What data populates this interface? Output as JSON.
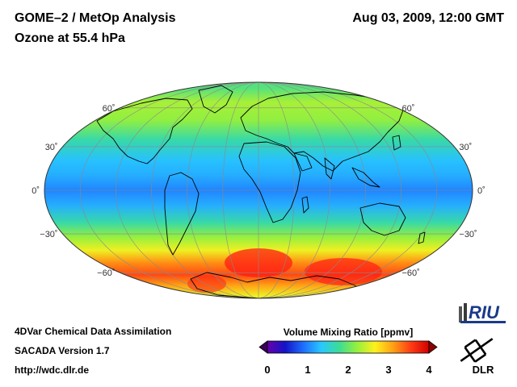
{
  "header": {
    "instrument": "GOME–2 / MetOp Analysis",
    "datetime": "Aug 03, 2009, 12:00 GMT",
    "quantity": "Ozone at 55.4 hPa"
  },
  "map": {
    "projection": "Mollweide",
    "lat_labels": [
      {
        "lat": 60,
        "text": "60˚"
      },
      {
        "lat": 30,
        "text": "30˚"
      },
      {
        "lat": 0,
        "text": "0˚"
      },
      {
        "lat": -30,
        "text": "−30˚"
      },
      {
        "lat": -60,
        "text": "−60˚"
      }
    ],
    "field_bands": [
      {
        "lat": 80,
        "value": 1.9
      },
      {
        "lat": 65,
        "value": 2.3
      },
      {
        "lat": 50,
        "value": 2.2
      },
      {
        "lat": 35,
        "value": 1.7
      },
      {
        "lat": 20,
        "value": 1.3
      },
      {
        "lat": 10,
        "value": 1.2
      },
      {
        "lat": 0,
        "value": 1.0
      },
      {
        "lat": -10,
        "value": 1.2
      },
      {
        "lat": -22,
        "value": 1.7
      },
      {
        "lat": -32,
        "value": 2.2
      },
      {
        "lat": -42,
        "value": 2.6
      },
      {
        "lat": -52,
        "value": 3.2
      },
      {
        "lat": -62,
        "value": 3.5
      },
      {
        "lat": -72,
        "value": 3.1
      },
      {
        "lat": -85,
        "value": 2.6
      }
    ]
  },
  "colorbar": {
    "title": "Volume Mixing Ratio [ppmv]",
    "min": 0,
    "max": 4,
    "ticks": [
      "0",
      "1",
      "2",
      "3",
      "4"
    ],
    "colors": [
      "#6600aa",
      "#1414c8",
      "#1e6eff",
      "#28c8ff",
      "#3cdc96",
      "#96f03c",
      "#fff01e",
      "#ffa014",
      "#ff3c14",
      "#d20000"
    ]
  },
  "footer": {
    "line1": "4DVar Chemical Data Assimilation",
    "line2": "SACADA Version 1.7",
    "line3": "http://wdc.dlr.de"
  },
  "logos": {
    "riu": "RIU",
    "dlr": "DLR"
  }
}
